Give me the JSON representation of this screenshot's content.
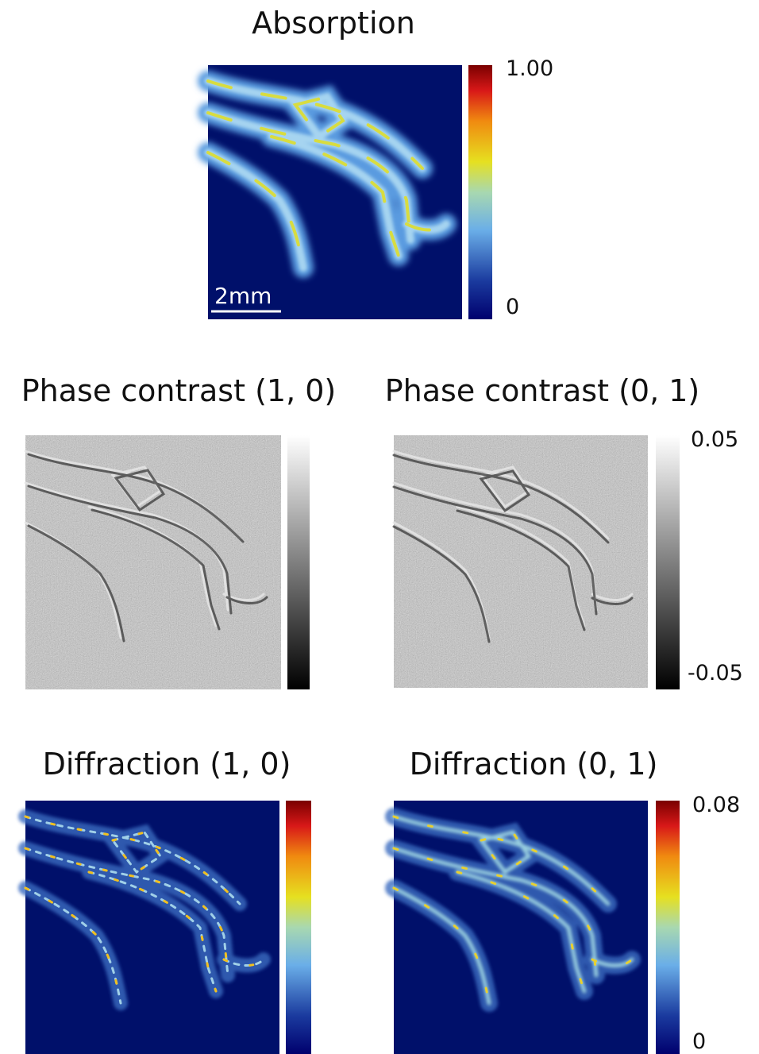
{
  "panels": [
    {
      "title": "Absorption",
      "colorbar": {
        "max": "1.00",
        "min": "0"
      },
      "scale_bar": "2mm"
    },
    {
      "title": "Phase contrast (1, 0)"
    },
    {
      "title": "Phase contrast (0, 1)",
      "colorbar": {
        "max": "0.05",
        "min": "-0.05"
      }
    },
    {
      "title": "Diffraction (1, 0)"
    },
    {
      "title": "Diffraction (0, 1)",
      "colorbar": {
        "max": "0.08",
        "min": "0"
      }
    }
  ]
}
